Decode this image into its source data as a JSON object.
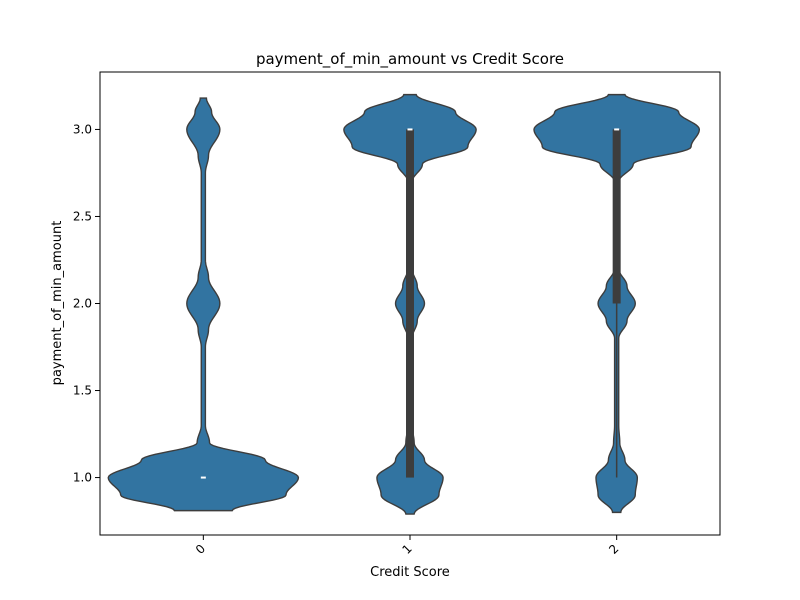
{
  "chart_data": {
    "type": "violin",
    "title": "payment_of_min_amount vs Credit Score",
    "xlabel": "Credit Score",
    "ylabel": "payment_of_min_amount",
    "categories": [
      "0",
      "1",
      "2"
    ],
    "ylim": [
      0.67,
      3.33
    ],
    "yticks": [
      1.0,
      1.5,
      2.0,
      2.5,
      3.0
    ],
    "ytick_labels": [
      "1.0",
      "1.5",
      "2.0",
      "2.5",
      "3.0"
    ],
    "grid": false,
    "fill_color": "#3274a1",
    "edge_color": "#3d3d3d",
    "box_color": "#3d3d3d",
    "violins": [
      {
        "category": "0",
        "y_min": 0.81,
        "y_max": 3.18,
        "density_half_width": [
          [
            0.81,
            0.14
          ],
          [
            0.9,
            0.4
          ],
          [
            1.0,
            0.46
          ],
          [
            1.1,
            0.3
          ],
          [
            1.2,
            0.03
          ],
          [
            1.3,
            0.01
          ],
          [
            1.75,
            0.01
          ],
          [
            1.85,
            0.025
          ],
          [
            2.0,
            0.08
          ],
          [
            2.15,
            0.025
          ],
          [
            2.25,
            0.01
          ],
          [
            2.75,
            0.01
          ],
          [
            2.85,
            0.025
          ],
          [
            3.0,
            0.08
          ],
          [
            3.1,
            0.04
          ],
          [
            3.18,
            0.015
          ]
        ],
        "box": {
          "q1": 1.0,
          "median": 1.0,
          "q3": 1.0,
          "whisker_low": 1.0,
          "whisker_high": 1.0
        }
      },
      {
        "category": "1",
        "y_min": 0.79,
        "y_max": 3.2,
        "density_half_width": [
          [
            0.79,
            0.02
          ],
          [
            0.9,
            0.14
          ],
          [
            1.0,
            0.16
          ],
          [
            1.1,
            0.07
          ],
          [
            1.2,
            0.02
          ],
          [
            1.3,
            0.01
          ],
          [
            1.8,
            0.01
          ],
          [
            1.9,
            0.035
          ],
          [
            2.0,
            0.07
          ],
          [
            2.1,
            0.035
          ],
          [
            2.2,
            0.01
          ],
          [
            2.7,
            0.01
          ],
          [
            2.8,
            0.06
          ],
          [
            2.9,
            0.28
          ],
          [
            3.0,
            0.32
          ],
          [
            3.1,
            0.22
          ],
          [
            3.2,
            0.03
          ]
        ],
        "box": {
          "q1": 1.0,
          "median": 3.0,
          "q3": 3.0,
          "whisker_low": 1.0,
          "whisker_high": 3.0
        }
      },
      {
        "category": "2",
        "y_min": 0.8,
        "y_max": 3.2,
        "density_half_width": [
          [
            0.8,
            0.02
          ],
          [
            0.9,
            0.09
          ],
          [
            1.0,
            0.1
          ],
          [
            1.1,
            0.04
          ],
          [
            1.2,
            0.015
          ],
          [
            1.3,
            0.01
          ],
          [
            1.8,
            0.01
          ],
          [
            1.9,
            0.05
          ],
          [
            2.0,
            0.09
          ],
          [
            2.1,
            0.05
          ],
          [
            2.2,
            0.01
          ],
          [
            2.7,
            0.01
          ],
          [
            2.8,
            0.08
          ],
          [
            2.9,
            0.36
          ],
          [
            3.0,
            0.4
          ],
          [
            3.1,
            0.3
          ],
          [
            3.2,
            0.04
          ]
        ],
        "box": {
          "q1": 2.0,
          "median": 3.0,
          "q3": 3.0,
          "whisker_low": 1.0,
          "whisker_high": 3.0
        }
      }
    ]
  }
}
